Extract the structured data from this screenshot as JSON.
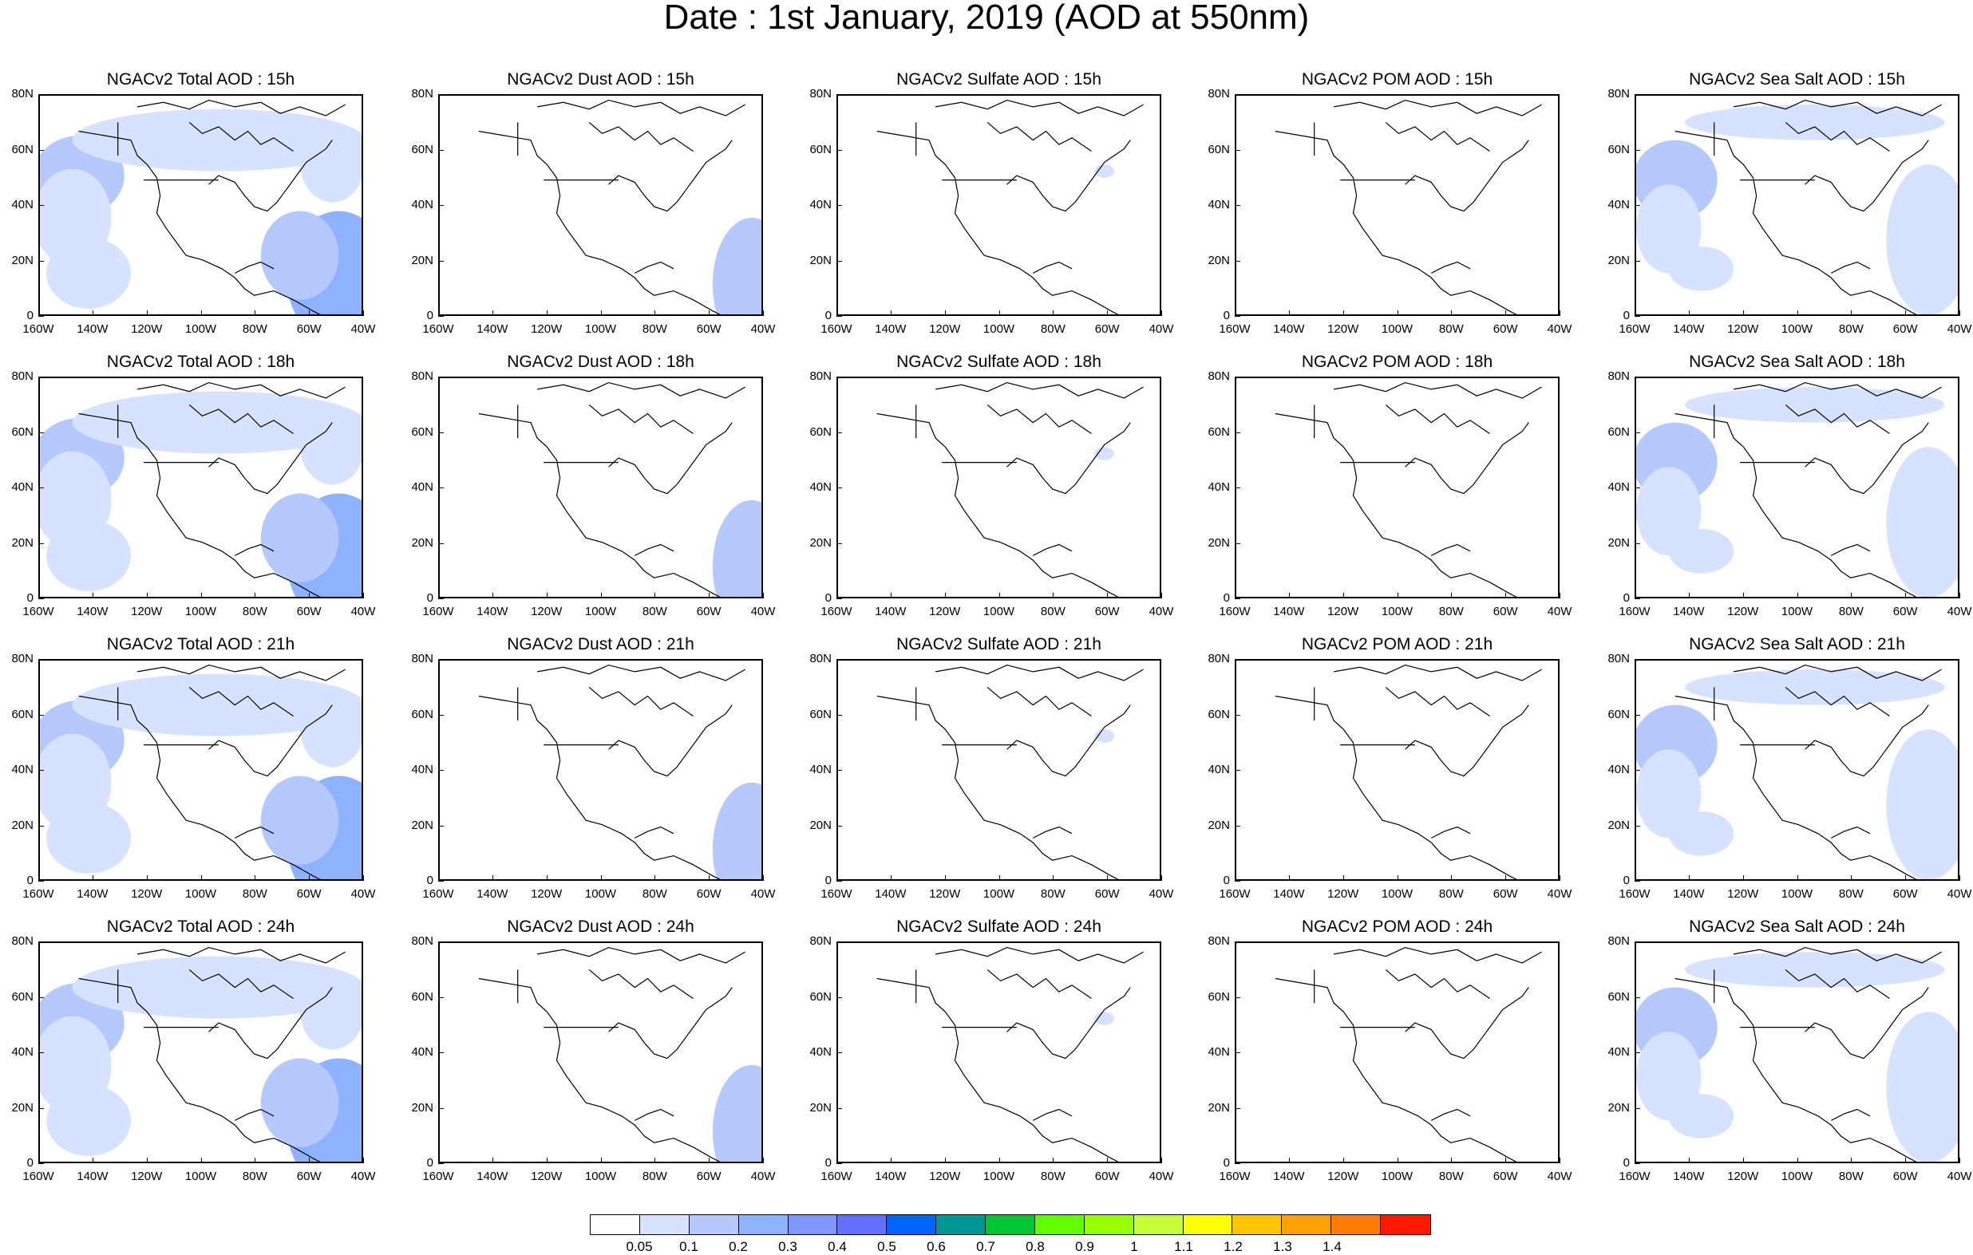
{
  "title": "Date : 1st January, 2019 (AOD at 550nm)",
  "lat_ticks": [
    "80N",
    "60N",
    "40N",
    "20N",
    "0"
  ],
  "lon_ticks": [
    "160W",
    "140W",
    "120W",
    "100W",
    "80W",
    "60W",
    "40W"
  ],
  "rows": [
    "15h",
    "18h",
    "21h",
    "24h"
  ],
  "panel_titles": [
    [
      "NGACv2 Total AOD : 15h",
      "NGACv2 Dust AOD : 15h",
      "NGACv2 Sulfate AOD : 15h",
      "NGACv2 POM AOD : 15h",
      "NGACv2 Sea Salt AOD : 15h"
    ],
    [
      "NGACv2 Total AOD : 18h",
      "NGACv2 Dust AOD : 18h",
      "NGACv2 Sulfate AOD : 18h",
      "NGACv2 POM AOD : 18h",
      "NGACv2 Sea Salt AOD : 18h"
    ],
    [
      "NGACv2 Total AOD : 21h",
      "NGACv2 Dust AOD : 21h",
      "NGACv2 Sulfate AOD : 21h",
      "NGACv2 POM AOD : 21h",
      "NGACv2 Sea Salt AOD : 21h"
    ],
    [
      "NGACv2 Total AOD : 24h",
      "NGACv2 Dust AOD : 24h",
      "NGACv2 Sulfate AOD : 24h",
      "NGACv2 POM AOD : 24h",
      "NGACv2 Sea Salt  AOD : 24h"
    ]
  ],
  "colorbar": {
    "colors": [
      "#ffffff",
      "#d6e2ff",
      "#b5c9ff",
      "#8eb2ff",
      "#7f96ff",
      "#6370ff",
      "#0063ff",
      "#009696",
      "#00c633",
      "#63ff00",
      "#96ff00",
      "#c6ff33",
      "#ffff00",
      "#ffc600",
      "#ffa000",
      "#ff7c00",
      "#ff1900"
    ],
    "labels": [
      "0.05",
      "0.1",
      "0.2",
      "0.3",
      "0.4",
      "0.5",
      "0.6",
      "0.7",
      "0.8",
      "0.9",
      "1",
      "1.1",
      "1.2",
      "1.3",
      "1.4"
    ]
  },
  "fill_colors": {
    "low": "#d6e2ff",
    "mid": "#b5c9ff",
    "high": "#8eb2ff"
  }
}
